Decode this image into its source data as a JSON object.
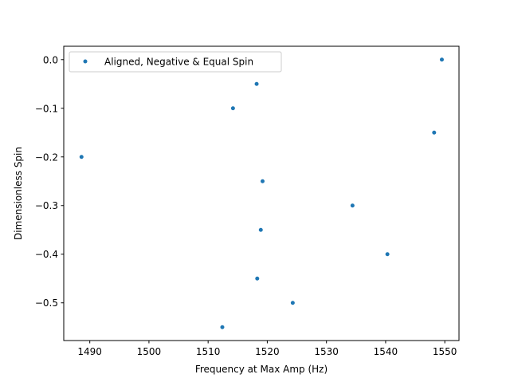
{
  "chart_data": {
    "type": "scatter",
    "title": "",
    "xlabel": "Frequency at Max Amp (Hz)",
    "ylabel": "Dimensionless Spin",
    "xlim": [
      1485.6,
      1552.4
    ],
    "ylim": [
      -0.5775,
      0.0275
    ],
    "xticks": [
      1490,
      1500,
      1510,
      1520,
      1530,
      1540,
      1550
    ],
    "yticks": [
      0.0,
      -0.1,
      -0.2,
      -0.3,
      -0.4,
      -0.5
    ],
    "xtick_labels": [
      "1490",
      "1500",
      "1510",
      "1520",
      "1530",
      "1540",
      "1550"
    ],
    "ytick_labels": [
      "0.0",
      "−0.1",
      "−0.2",
      "−0.3",
      "−0.4",
      "−0.5"
    ],
    "grid": false,
    "legend_position": "upper-left",
    "series": [
      {
        "name": "Aligned, Negative & Equal Spin",
        "color": "#1f77b4",
        "marker": "circle",
        "points": [
          {
            "x": 1549.5,
            "y": 0.0
          },
          {
            "x": 1518.2,
            "y": -0.05
          },
          {
            "x": 1514.2,
            "y": -0.1
          },
          {
            "x": 1548.2,
            "y": -0.15
          },
          {
            "x": 1488.6,
            "y": -0.2
          },
          {
            "x": 1519.2,
            "y": -0.25
          },
          {
            "x": 1534.4,
            "y": -0.3
          },
          {
            "x": 1518.9,
            "y": -0.35
          },
          {
            "x": 1540.3,
            "y": -0.4
          },
          {
            "x": 1518.3,
            "y": -0.45
          },
          {
            "x": 1524.3,
            "y": -0.5
          },
          {
            "x": 1512.4,
            "y": -0.55
          }
        ]
      }
    ]
  }
}
